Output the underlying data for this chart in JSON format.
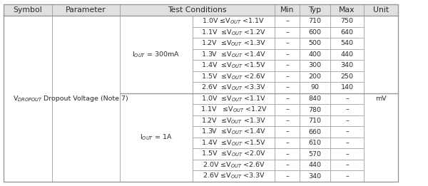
{
  "col_edges": [
    5,
    73,
    168,
    270,
    385,
    420,
    463,
    510,
    558
  ],
  "header_labels": [
    "Symbol",
    "Parameter",
    "Test Conditions",
    "",
    "Min",
    "Typ",
    "Max",
    "Unit"
  ],
  "symbol_text": "V$_{DROPOUT}$",
  "parameter_text": "Dropout Voltage (Note 7)",
  "unit_text": "mV",
  "iout_300mA_text": "I$_{OUT}$ = 300mA",
  "iout_1A_text": "I$_{OUT}$ = 1A",
  "rows_300mA": [
    {
      "cond": "1.0V ≤V$_{OUT}$ <1.1V",
      "min": "–",
      "typ": "710",
      "max": "750"
    },
    {
      "cond": "1.1V  ≤V$_{OUT}$ <1.2V",
      "min": "–",
      "typ": "600",
      "max": "640"
    },
    {
      "cond": "1.2V  ≤V$_{OUT}$ <1.3V",
      "min": "–",
      "typ": "500",
      "max": "540"
    },
    {
      "cond": "1.3V  ≤V$_{OUT}$ <1.4V",
      "min": "–",
      "typ": "400",
      "max": "440"
    },
    {
      "cond": "1.4V  ≤V$_{OUT}$ <1.5V",
      "min": "–",
      "typ": "300",
      "max": "340"
    },
    {
      "cond": "1.5V  ≤V$_{OUT}$ <2.6V",
      "min": "–",
      "typ": "200",
      "max": "250"
    },
    {
      "cond": "2.6V  ≤V$_{OUT}$ <3.3V",
      "min": "–",
      "typ": "90",
      "max": "140"
    }
  ],
  "rows_1A": [
    {
      "cond": "1.0V  ≤V$_{OUT}$ <1.1V",
      "min": "–",
      "typ": "840",
      "max": "–"
    },
    {
      "cond": "1.1V   ≤V$_{OUT}$ <1.2V",
      "min": "–",
      "typ": "780",
      "max": "–"
    },
    {
      "cond": "1.2V  ≤V$_{OUT}$ <1.3V",
      "min": "–",
      "typ": "710",
      "max": "–"
    },
    {
      "cond": "1.3V  ≤V$_{OUT}$ <1.4V",
      "min": "–",
      "typ": "660",
      "max": "–"
    },
    {
      "cond": "1.4V  ≤V$_{OUT}$ <1.5V",
      "min": "–",
      "typ": "610",
      "max": "–"
    },
    {
      "cond": "1.5V  ≤V$_{OUT}$ <2.0V",
      "min": "–",
      "typ": "570",
      "max": "–"
    },
    {
      "cond": "2.0V ≤V$_{OUT}$ <2.6V",
      "min": "–",
      "typ": "440",
      "max": "–"
    },
    {
      "cond": "2.6V ≤V$_{OUT}$ <3.3V",
      "min": "–",
      "typ": "340",
      "max": "–"
    }
  ],
  "header_bg": "#e0e0e0",
  "row_bg": "#ffffff",
  "border_color": "#999999",
  "text_color": "#2a2a2a",
  "header_fontsize": 7.8,
  "cell_fontsize": 6.8,
  "fig_width": 6.0,
  "fig_height": 2.61,
  "dpi": 100
}
